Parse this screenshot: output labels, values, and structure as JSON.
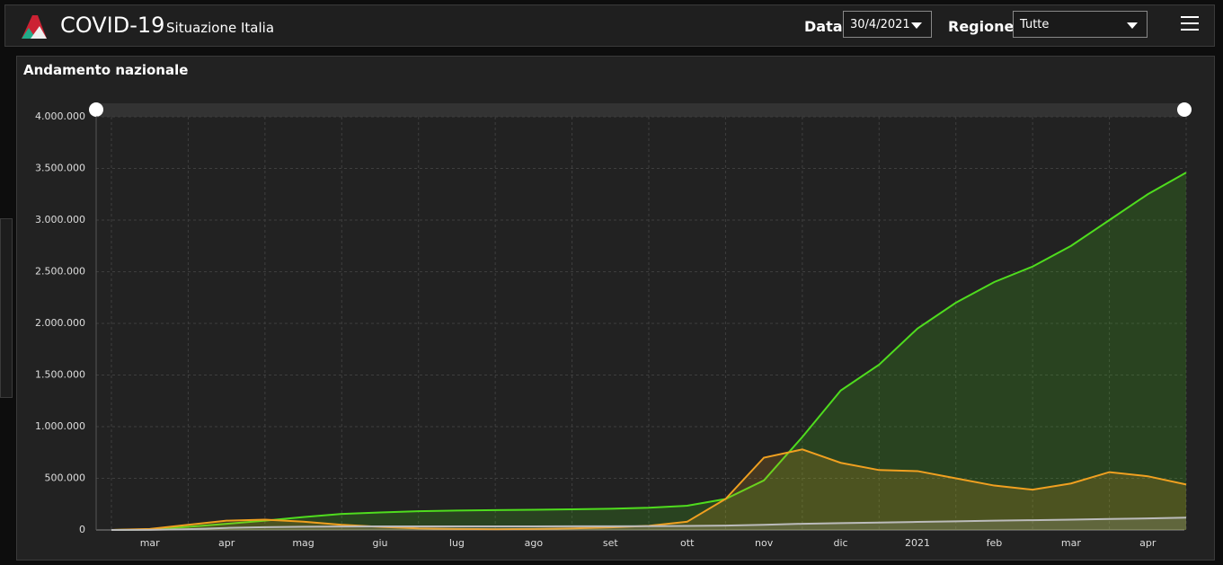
{
  "header": {
    "title": "COVID-19",
    "subtitle": "Situazione Italia",
    "date_label": "Data",
    "date_value": "30/4/2021",
    "region_label": "Regione",
    "region_value": "Tutte"
  },
  "panel": {
    "title": "Andamento nazionale"
  },
  "chart_data": {
    "type": "line",
    "categories": [
      null,
      "mar",
      null,
      "apr",
      null,
      "mag",
      null,
      "giu",
      null,
      "lug",
      null,
      "ago",
      null,
      "set",
      null,
      "ott",
      null,
      "nov",
      null,
      "dic",
      null,
      "2021",
      null,
      "feb",
      null,
      "mar",
      null,
      "apr",
      null
    ],
    "series": [
      {
        "color": "#4fdc1e",
        "values": [
          0,
          5000,
          30000,
          60000,
          90000,
          125000,
          155000,
          170000,
          182000,
          188000,
          192000,
          196000,
          200000,
          205000,
          215000,
          235000,
          300000,
          480000,
          900000,
          1350000,
          1600000,
          1950000,
          2200000,
          2400000,
          2550000,
          2750000,
          3000000,
          3250000,
          3460000
        ]
      },
      {
        "color": "#f0a020",
        "values": [
          0,
          10000,
          50000,
          90000,
          100000,
          80000,
          50000,
          30000,
          15000,
          10000,
          8000,
          10000,
          15000,
          25000,
          40000,
          80000,
          300000,
          700000,
          780000,
          650000,
          580000,
          570000,
          500000,
          430000,
          390000,
          450000,
          560000,
          520000,
          440000
        ]
      },
      {
        "color": "#bbbbbb",
        "values": [
          0,
          1000,
          8000,
          20000,
          27000,
          32000,
          34000,
          35000,
          35000,
          35000,
          35000,
          35000,
          36000,
          36000,
          37000,
          39000,
          42000,
          50000,
          60000,
          66000,
          72000,
          78000,
          84000,
          90000,
          95000,
          100000,
          106000,
          112000,
          120000
        ]
      }
    ],
    "ylim": [
      0,
      4000000
    ],
    "yticks": [
      0,
      {
        "value": 500000,
        "label": "500.000"
      },
      {
        "value": 1000000,
        "label": "1.000.000"
      },
      {
        "value": 1500000,
        "label": "1.500.000"
      },
      {
        "value": 2000000,
        "label": "2.000.000"
      },
      {
        "value": 2500000,
        "label": "2.500.000"
      },
      {
        "value": 3000000,
        "label": "3.000.000"
      },
      {
        "value": 3500000,
        "label": "3.500.000"
      },
      {
        "value": 4000000,
        "label": "4.000.000"
      }
    ],
    "grid": true
  }
}
